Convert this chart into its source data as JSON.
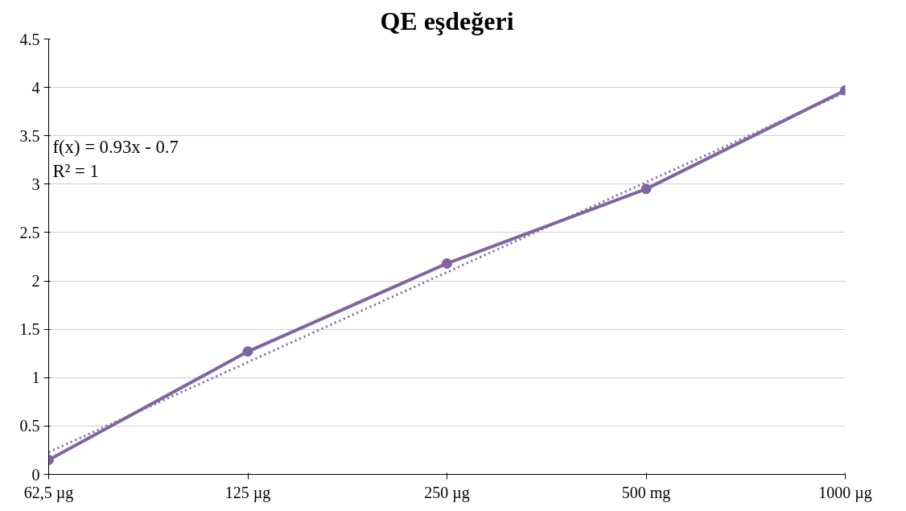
{
  "chart_data": {
    "type": "line",
    "title": "QE eşdeğeri",
    "categories": [
      "62,5 µg",
      "125 µg",
      "250 µg",
      "500 mg",
      "1000 µg"
    ],
    "series": [
      {
        "color": "#8064a2",
        "values": [
          0.15,
          1.27,
          2.18,
          2.95,
          3.97
        ],
        "marker": "circle",
        "line_style": "solid"
      },
      {
        "type": "line",
        "color": "#8064a2",
        "values": [
          0.23,
          1.16,
          2.09,
          3.02,
          3.95
        ],
        "marker": "none",
        "line_style": "dotted"
      }
    ],
    "ylim": [
      0,
      4.5
    ],
    "yticks": [
      0,
      0.5,
      1,
      1.5,
      2,
      2.5,
      3,
      3.5,
      4,
      4.5
    ],
    "grid": "y",
    "annotations": [
      "f(x) = 0.93x - 0.7",
      "R² = 1"
    ]
  }
}
